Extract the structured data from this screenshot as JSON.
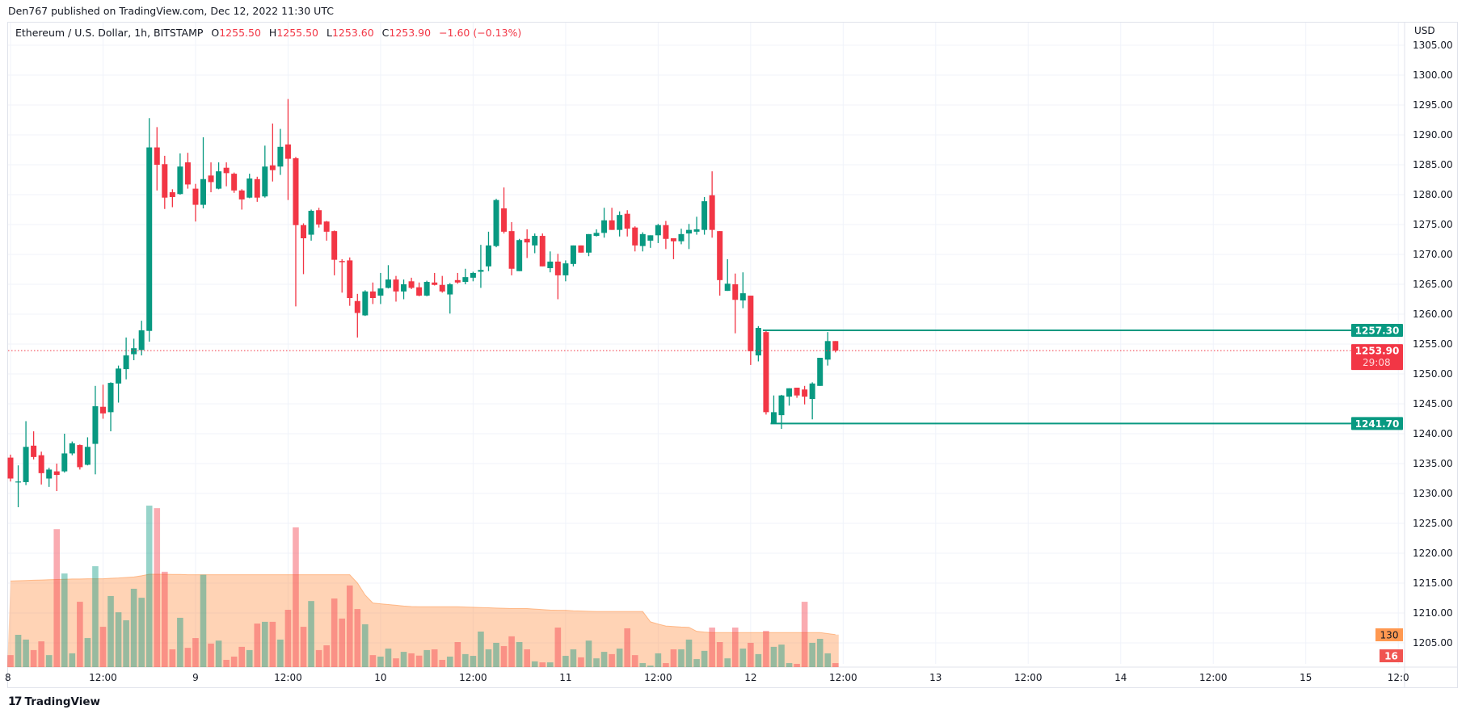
{
  "header": {
    "publisher_line": "Den767 published on TradingView.com, Dec 12, 2022 11:30 UTC"
  },
  "legend": {
    "symbol": "Ethereum / U.S. Dollar, 1h, BITSTAMP",
    "open_label": "O",
    "open": "1255.50",
    "high_label": "H",
    "high": "1255.50",
    "low_label": "L",
    "low": "1253.60",
    "close_label": "C",
    "close": "1253.90",
    "change": "−1.60 (−0.13%)"
  },
  "price_axis": {
    "currency": "USD",
    "labels": [
      "1305.00",
      "1300.00",
      "1295.00",
      "1290.00",
      "1285.00",
      "1280.00",
      "1275.00",
      "1270.00",
      "1265.00",
      "1260.00",
      "1255.00",
      "1250.00",
      "1245.00",
      "1240.00",
      "1235.00",
      "1230.00",
      "1225.00",
      "1220.00",
      "1215.00",
      "1210.00",
      "1205.00"
    ],
    "current_price": "1253.90",
    "countdown": "29:08",
    "resistance_label": "1257.30",
    "support_label": "1241.70",
    "volume_ma_label": "130",
    "volume_label": "16"
  },
  "time_axis": {
    "labels": [
      "8",
      "12:00",
      "9",
      "12:00",
      "10",
      "12:00",
      "11",
      "12:00",
      "12",
      "12:00",
      "13",
      "12:00",
      "14",
      "12:00",
      "15",
      "12:0"
    ]
  },
  "colors": {
    "up": "#089981",
    "down": "#f23645",
    "level_line": "#089981",
    "volume_ma": "#ff9850",
    "grid": "#f0f3fa"
  },
  "chart_data": {
    "type": "candlestick",
    "interval": "1h",
    "first_bar": "Dec 8 00:00",
    "ylim": [
      1202,
      1307
    ],
    "grid": true,
    "ohlc": [
      [
        1236.0,
        1236.5,
        1232.0,
        1232.5
      ],
      [
        1232.0,
        1234.7,
        1227.7,
        1232.0
      ],
      [
        1231.9,
        1242.1,
        1231.4,
        1237.8
      ],
      [
        1238.0,
        1240.4,
        1235.7,
        1236.1
      ],
      [
        1236.4,
        1237.0,
        1231.5,
        1233.4
      ],
      [
        1232.5,
        1234.3,
        1231.1,
        1234.0
      ],
      [
        1233.7,
        1235.0,
        1230.4,
        1233.1
      ],
      [
        1233.7,
        1240.0,
        1233.5,
        1236.7
      ],
      [
        1236.7,
        1238.7,
        1236.4,
        1238.4
      ],
      [
        1238.1,
        1238.2,
        1234.0,
        1234.4
      ],
      [
        1234.8,
        1239.4,
        1234.7,
        1237.8
      ],
      [
        1238.3,
        1248.0,
        1233.2,
        1244.6
      ],
      [
        1244.5,
        1248.2,
        1242.5,
        1243.4
      ],
      [
        1243.6,
        1248.6,
        1240.4,
        1248.5
      ],
      [
        1248.4,
        1251.4,
        1245.2,
        1250.9
      ],
      [
        1250.8,
        1256.1,
        1249.1,
        1253.1
      ],
      [
        1253.3,
        1255.9,
        1252.3,
        1254.3
      ],
      [
        1254.0,
        1258.9,
        1253.1,
        1257.3
      ],
      [
        1257.2,
        1292.8,
        1255.4,
        1287.9
      ],
      [
        1287.9,
        1291.3,
        1280.7,
        1285.0
      ],
      [
        1285.1,
        1286.5,
        1277.6,
        1279.5
      ],
      [
        1280.4,
        1280.9,
        1277.9,
        1279.6
      ],
      [
        1280.1,
        1286.9,
        1280.0,
        1284.7
      ],
      [
        1285.4,
        1287.0,
        1281.0,
        1281.7
      ],
      [
        1281.0,
        1281.8,
        1275.5,
        1278.3
      ],
      [
        1278.3,
        1289.6,
        1277.7,
        1282.6
      ],
      [
        1283.2,
        1285.4,
        1280.4,
        1282.1
      ],
      [
        1281.0,
        1285.4,
        1280.9,
        1283.9
      ],
      [
        1284.5,
        1285.4,
        1281.4,
        1283.6
      ],
      [
        1283.5,
        1283.7,
        1280.3,
        1280.7
      ],
      [
        1280.7,
        1280.9,
        1277.5,
        1279.2
      ],
      [
        1279.5,
        1283.5,
        1279.4,
        1282.7
      ],
      [
        1282.6,
        1283.0,
        1278.8,
        1279.5
      ],
      [
        1279.7,
        1288.2,
        1279.5,
        1284.7
      ],
      [
        1284.9,
        1291.9,
        1282.2,
        1284.1
      ],
      [
        1284.7,
        1291.0,
        1283.3,
        1288.0
      ],
      [
        1288.4,
        1296.0,
        1279.1,
        1286.0
      ],
      [
        1286.1,
        1286.3,
        1261.3,
        1274.9
      ],
      [
        1274.9,
        1275.2,
        1266.7,
        1272.7
      ],
      [
        1273.3,
        1277.5,
        1272.3,
        1277.3
      ],
      [
        1277.4,
        1277.8,
        1274.5,
        1275.0
      ],
      [
        1275.5,
        1275.6,
        1272.3,
        1273.8
      ],
      [
        1273.9,
        1274.0,
        1266.5,
        1269.1
      ],
      [
        1268.9,
        1269.2,
        1263.6,
        1268.7
      ],
      [
        1269.0,
        1269.5,
        1261.4,
        1262.7
      ],
      [
        1262.2,
        1263.4,
        1256.1,
        1260.2
      ],
      [
        1259.8,
        1264.0,
        1259.7,
        1263.8
      ],
      [
        1263.8,
        1265.3,
        1261.7,
        1262.7
      ],
      [
        1263.1,
        1266.9,
        1261.7,
        1264.3
      ],
      [
        1264.4,
        1268.2,
        1264.3,
        1265.8
      ],
      [
        1265.8,
        1266.4,
        1262.1,
        1263.8
      ],
      [
        1263.8,
        1265.8,
        1262.5,
        1265.0
      ],
      [
        1265.5,
        1266.1,
        1264.2,
        1264.4
      ],
      [
        1264.5,
        1265.3,
        1263.0,
        1263.1
      ],
      [
        1263.1,
        1265.6,
        1263.0,
        1265.4
      ],
      [
        1265.3,
        1266.9,
        1264.8,
        1264.9
      ],
      [
        1264.9,
        1266.4,
        1263.6,
        1263.8
      ],
      [
        1263.3,
        1265.2,
        1260.1,
        1265.0
      ],
      [
        1265.7,
        1266.9,
        1265.1,
        1265.3
      ],
      [
        1265.4,
        1267.6,
        1265.0,
        1266.2
      ],
      [
        1266.1,
        1267.1,
        1265.5,
        1266.9
      ],
      [
        1267.1,
        1271.6,
        1264.4,
        1267.4
      ],
      [
        1268.0,
        1273.8,
        1267.2,
        1271.5
      ],
      [
        1271.4,
        1279.3,
        1271.2,
        1279.1
      ],
      [
        1277.7,
        1281.2,
        1273.5,
        1273.8
      ],
      [
        1273.9,
        1275.4,
        1266.5,
        1267.6
      ],
      [
        1267.2,
        1272.6,
        1267.2,
        1272.4
      ],
      [
        1272.6,
        1274.2,
        1269.4,
        1272.0
      ],
      [
        1271.5,
        1273.5,
        1270.2,
        1273.1
      ],
      [
        1273.1,
        1273.5,
        1268.0,
        1268.0
      ],
      [
        1267.7,
        1270.5,
        1267.0,
        1268.8
      ],
      [
        1268.8,
        1270.1,
        1262.5,
        1266.5
      ],
      [
        1266.5,
        1269.0,
        1265.5,
        1268.5
      ],
      [
        1268.4,
        1271.5,
        1268.0,
        1271.5
      ],
      [
        1271.5,
        1271.5,
        1270.3,
        1270.3
      ],
      [
        1270.3,
        1273.4,
        1269.7,
        1273.4
      ],
      [
        1273.1,
        1274.2,
        1273.0,
        1273.6
      ],
      [
        1273.6,
        1277.8,
        1272.8,
        1275.7
      ],
      [
        1275.7,
        1277.8,
        1274.1,
        1274.1
      ],
      [
        1274.1,
        1277.2,
        1273.0,
        1276.6
      ],
      [
        1276.8,
        1277.4,
        1273.0,
        1274.3
      ],
      [
        1274.5,
        1274.7,
        1270.5,
        1271.5
      ],
      [
        1271.4,
        1273.7,
        1270.5,
        1273.4
      ],
      [
        1272.3,
        1273.2,
        1271.1,
        1273.2
      ],
      [
        1273.2,
        1275.1,
        1271.9,
        1274.9
      ],
      [
        1274.9,
        1275.6,
        1270.9,
        1272.6
      ],
      [
        1272.7,
        1272.7,
        1269.2,
        1272.2
      ],
      [
        1272.2,
        1274.3,
        1271.7,
        1273.4
      ],
      [
        1273.5,
        1275.1,
        1270.9,
        1274.1
      ],
      [
        1273.8,
        1276.3,
        1273.3,
        1274.2
      ],
      [
        1274.1,
        1279.6,
        1273.3,
        1278.9
      ],
      [
        1279.9,
        1283.9,
        1272.8,
        1274.1
      ],
      [
        1273.9,
        1273.9,
        1263.1,
        1265.7
      ],
      [
        1263.9,
        1269.2,
        1263.9,
        1265.1
      ],
      [
        1265.0,
        1266.8,
        1256.8,
        1262.4
      ],
      [
        1262.3,
        1267.0,
        1261.0,
        1263.5
      ],
      [
        1263.1,
        1263.1,
        1251.5,
        1253.8
      ],
      [
        1253.1,
        1258.0,
        1252.1,
        1257.7
      ],
      [
        1257.0,
        1257.3,
        1243.2,
        1243.6
      ],
      [
        1241.8,
        1246.4,
        1241.8,
        1243.6
      ],
      [
        1243.1,
        1246.5,
        1240.8,
        1246.4
      ],
      [
        1246.2,
        1247.6,
        1244.7,
        1247.6
      ],
      [
        1247.7,
        1247.7,
        1246.0,
        1246.4
      ],
      [
        1247.4,
        1248.0,
        1244.9,
        1246.2
      ],
      [
        1245.8,
        1248.6,
        1242.4,
        1248.4
      ],
      [
        1248.0,
        1252.7,
        1248.0,
        1252.7
      ],
      [
        1252.4,
        1257.0,
        1251.4,
        1255.5
      ],
      [
        1255.5,
        1255.5,
        1253.6,
        1253.9
      ]
    ],
    "volume": [
      48,
      129,
      110,
      68,
      103,
      48,
      551,
      374,
      55,
      261,
      116,
      403,
      161,
      284,
      219,
      187,
      313,
      277,
      645,
      635,
      381,
      71,
      197,
      77,
      116,
      369,
      94,
      106,
      29,
      42,
      81,
      68,
      174,
      181,
      181,
      110,
      229,
      558,
      161,
      264,
      68,
      87,
      274,
      194,
      326,
      232,
      171,
      48,
      42,
      74,
      35,
      61,
      55,
      46,
      68,
      71,
      29,
      42,
      100,
      52,
      45,
      142,
      71,
      97,
      84,
      123,
      100,
      71,
      23,
      19,
      19,
      158,
      45,
      71,
      39,
      106,
      35,
      61,
      52,
      74,
      155,
      48,
      16,
      6,
      55,
      16,
      71,
      71,
      110,
      32,
      65,
      158,
      100,
      35,
      158,
      74,
      97,
      52,
      145,
      81,
      90,
      16,
      13,
      261,
      97,
      113,
      55,
      16
    ],
    "volume_ma": [
      344,
      345,
      346,
      347,
      348,
      349,
      350,
      351,
      352,
      352,
      353,
      353,
      353,
      355,
      356,
      358,
      360,
      365,
      371,
      371,
      371,
      370,
      370,
      369,
      369,
      369,
      369,
      369,
      369,
      369,
      369,
      369,
      369,
      369,
      369,
      369,
      369,
      369,
      369,
      369,
      369,
      369,
      369,
      369,
      369,
      336,
      288,
      256,
      253,
      250,
      247,
      244,
      242,
      241,
      241,
      241,
      241,
      241,
      241,
      240,
      239,
      238,
      237,
      236,
      235,
      234,
      234,
      234,
      232,
      230,
      228,
      227,
      227,
      225,
      224,
      223,
      222,
      222,
      222,
      222,
      222,
      222,
      222,
      181,
      172,
      164,
      162,
      160,
      159,
      143,
      140,
      138,
      138,
      138,
      138,
      138,
      138,
      138,
      138,
      138,
      138,
      138,
      138,
      138,
      138,
      138,
      134,
      130
    ],
    "horizontal_levels": [
      {
        "price": 1257.3,
        "from_bar": 99
      },
      {
        "price": 1241.7,
        "from_bar": 100
      }
    ]
  },
  "footer": {
    "brand": "TradingView",
    "logo_mark": "17"
  }
}
